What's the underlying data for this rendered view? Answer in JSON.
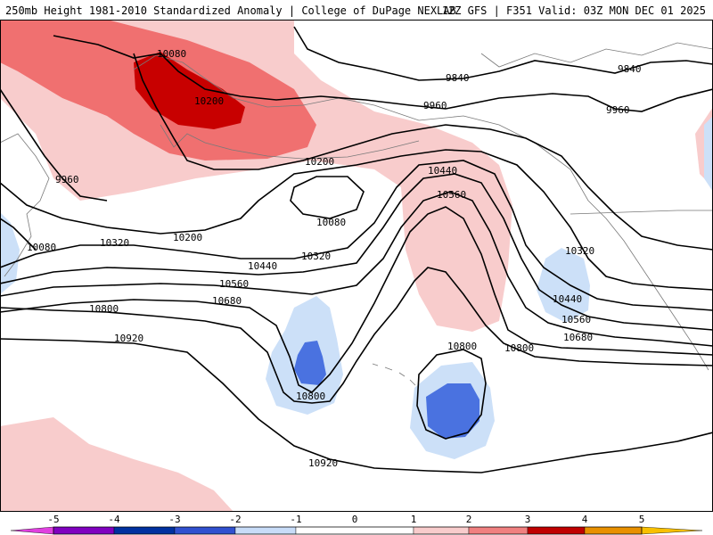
{
  "title": {
    "left": "250mb Height 1981-2010 Standardized Anomaly | College of DuPage NEXLAB",
    "right": "12Z GFS | F351 Valid: 03Z MON DEC 01 2025"
  },
  "colors": {
    "pos1": "#f8cccc",
    "pos2": "#f07070",
    "pos3": "#c80000",
    "neg1": "#cce0f8",
    "neg2": "#4a72e0",
    "contour": "#000000",
    "coast": "#7a7a7a"
  },
  "contour_labels": [
    "10080",
    "10200",
    "9960",
    "9840",
    "9960",
    "9840",
    "9960",
    "10200",
    "10440",
    "10560",
    "10080",
    "10080",
    "10320",
    "10200",
    "10320",
    "10440",
    "10560",
    "10680",
    "10800",
    "10920",
    "10800",
    "10800",
    "10800",
    "10920",
    "10320",
    "10440",
    "10560",
    "10680"
  ],
  "legend": {
    "ticks": [
      "-5",
      "-4",
      "-3",
      "-2",
      "-1",
      "0",
      "1",
      "2",
      "3",
      "4",
      "5"
    ],
    "swatches": [
      "#e040e0",
      "#8000c0",
      "#0030a0",
      "#3050d0",
      "#c8dcf8",
      "#ffffff",
      "#f8cccc",
      "#f08080",
      "#c00000",
      "#e89000",
      "#f8c000"
    ]
  }
}
